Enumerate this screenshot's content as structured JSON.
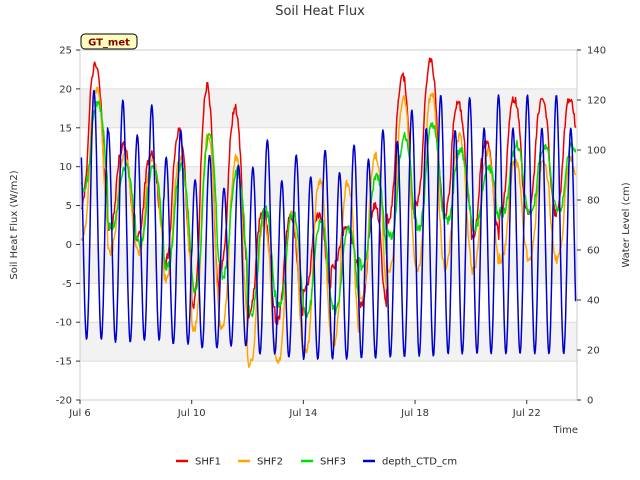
{
  "chart_data": {
    "type": "line",
    "title": "Soil Heat Flux",
    "xlabel": "Time",
    "ylabel_left": "Soil Heat Flux (W/m2)",
    "ylabel_right": "Water Level (cm)",
    "badge": "GT_met",
    "xlim": [
      6,
      23.8
    ],
    "ylim_left": [
      -20,
      25
    ],
    "ylim_right": [
      0,
      140
    ],
    "x_ticks": [
      {
        "value": 6,
        "label": "Jul 6"
      },
      {
        "value": 10,
        "label": "Jul 10"
      },
      {
        "value": 14,
        "label": "Jul 14"
      },
      {
        "value": 18,
        "label": "Jul 18"
      },
      {
        "value": 22,
        "label": "Jul 22"
      }
    ],
    "y_ticks_left": [
      25,
      20,
      15,
      10,
      5,
      0,
      -5,
      -10,
      -15,
      -20
    ],
    "y_ticks_right": [
      140,
      120,
      100,
      80,
      60,
      40,
      20,
      0
    ],
    "grid": true,
    "legend_position": "bottom-center",
    "series": [
      {
        "name": "SHF1",
        "color": "#ee0000",
        "axis": "left",
        "daily_peak": [
          23.3,
          12.7,
          11.5,
          14.5,
          20.4,
          17.5,
          4.4,
          3.5,
          3.8,
          2.0,
          5.0,
          21.7,
          23.5,
          18.3,
          13.2,
          18.8
        ],
        "daily_trough": [
          5.0,
          2.0,
          1.0,
          -2.5,
          -8.0,
          -3.0,
          -9.0,
          -10.0,
          -6.0,
          -3.0,
          -8.0,
          3.0,
          5.0,
          3.5,
          1.0,
          4.0
        ]
      },
      {
        "name": "SHF2",
        "color": "#ffa500",
        "axis": "left",
        "daily_peak": [
          20.0,
          11.5,
          11.0,
          11.0,
          14.0,
          11.0,
          3.0,
          4.0,
          8.3,
          8.0,
          11.3,
          18.8,
          19.5,
          14.0,
          12.0,
          10.8
        ],
        "daily_trough": [
          1.0,
          -1.0,
          -1.0,
          -4.5,
          -11.0,
          -11.0,
          -15.5,
          -15.5,
          -14.0,
          -13.0,
          -7.0,
          -3.5,
          -3.5,
          -3.0,
          -3.5,
          -2.0
        ]
      },
      {
        "name": "SHF3",
        "color": "#00dd00",
        "axis": "left",
        "daily_peak": [
          18.0,
          10.0,
          10.0,
          10.0,
          14.0,
          9.5,
          4.5,
          4.0,
          3.0,
          2.0,
          9.0,
          14.0,
          15.5,
          12.0,
          10.0,
          12.8
        ],
        "daily_trough": [
          7.0,
          2.0,
          0.0,
          -3.0,
          -6.0,
          -4.0,
          -9.0,
          -8.0,
          -9.0,
          -8.5,
          -3.0,
          1.0,
          2.0,
          3.0,
          2.0,
          4.0
        ]
      },
      {
        "name": "depth_CTD_cm",
        "color": "#0000cc",
        "axis": "right",
        "cycle_peak": [
          124,
          120,
          118,
          108,
          98,
          94,
          104,
          98,
          100,
          102,
          108,
          116,
          122,
          121,
          122,
          122
        ],
        "cycle_trough": [
          18,
          17,
          18,
          17,
          16,
          17,
          13,
          12,
          11,
          11,
          11,
          11,
          11,
          12,
          12,
          12
        ]
      }
    ]
  }
}
